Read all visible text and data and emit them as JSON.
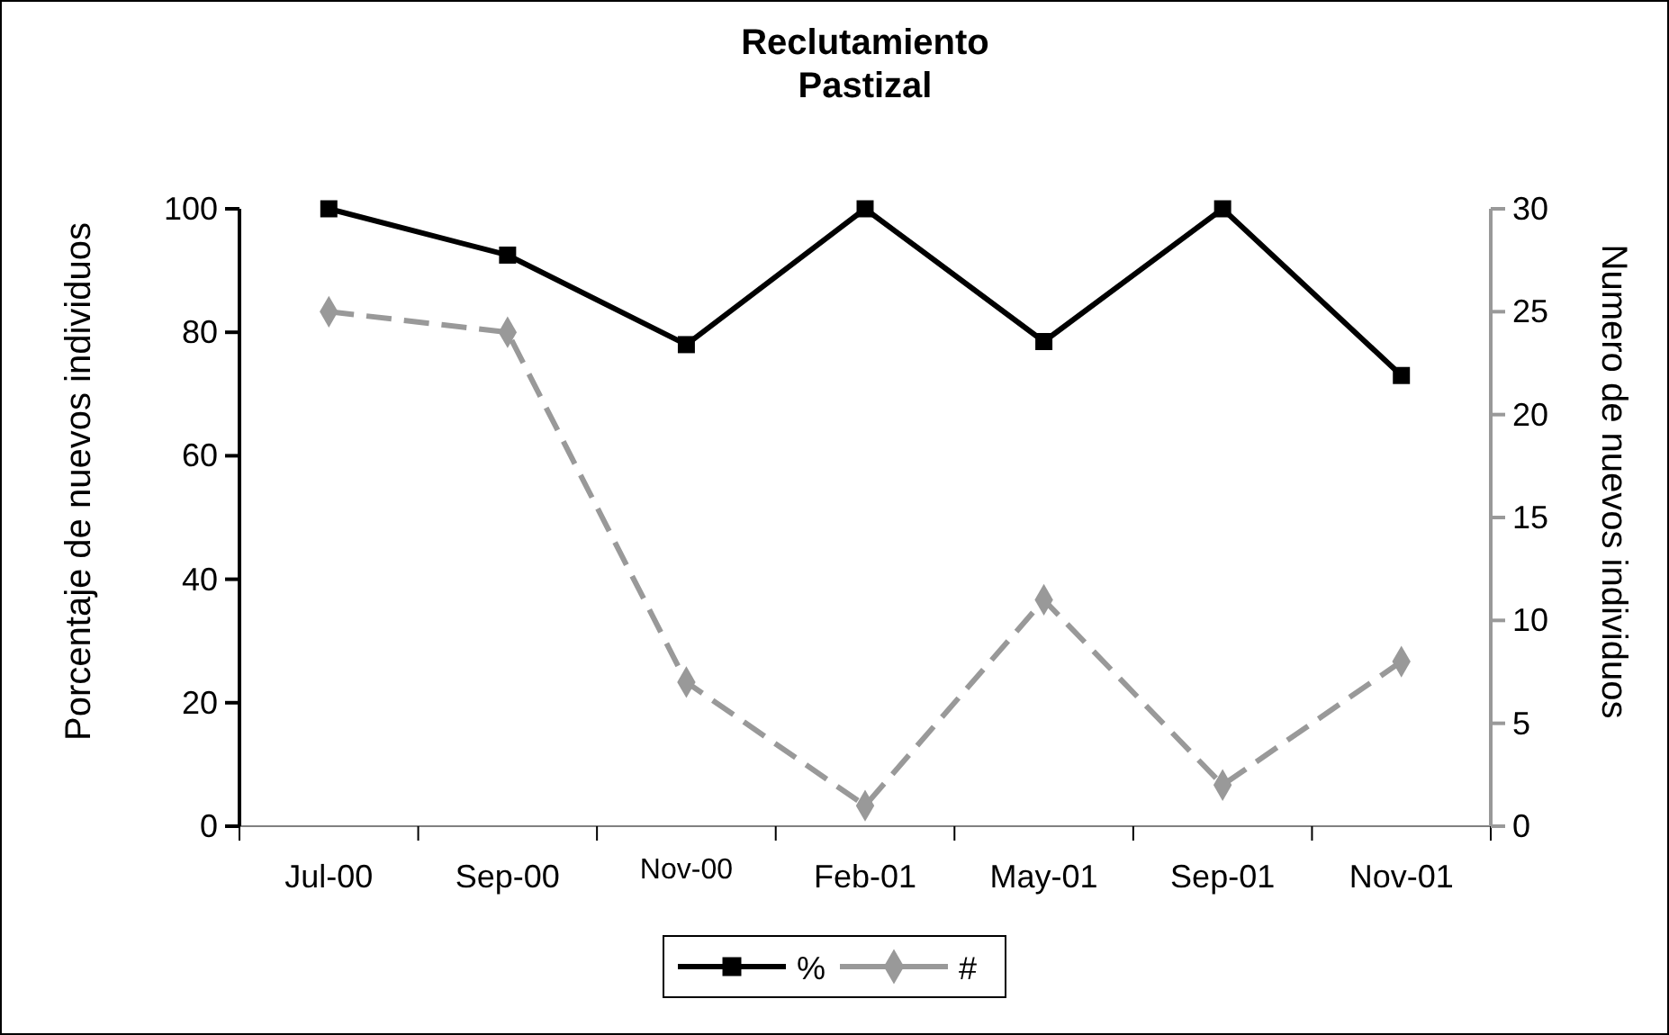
{
  "chart_data": {
    "type": "line",
    "title": "Reclutamiento\nPastizal",
    "ylabel": "Porcentaje de nuevos individuos",
    "y2label": "Numero de nuevos individuos",
    "categories": [
      "Jul-00",
      "Sep-00",
      "Nov-00",
      "Feb-01",
      "May-01",
      "Sep-01",
      "Nov-01"
    ],
    "series": [
      {
        "name": "%",
        "color": "#000000",
        "values": [
          100,
          92.5,
          78,
          100,
          78.5,
          100,
          73
        ],
        "marker": "square",
        "line_style": "solid"
      },
      {
        "name": "#",
        "color": "#999999",
        "values": [
          25,
          24,
          7,
          1,
          11,
          2,
          8
        ],
        "axis": "y2",
        "marker": "diamond",
        "line_style": "dashed"
      }
    ],
    "ylim": [
      0,
      100
    ],
    "yticks": [
      0,
      20,
      40,
      60,
      80,
      100
    ],
    "y2lim": [
      0,
      30
    ],
    "y2ticks": [
      0,
      5,
      10,
      15,
      20,
      25,
      30
    ],
    "grid": false,
    "legend": "bottom"
  }
}
